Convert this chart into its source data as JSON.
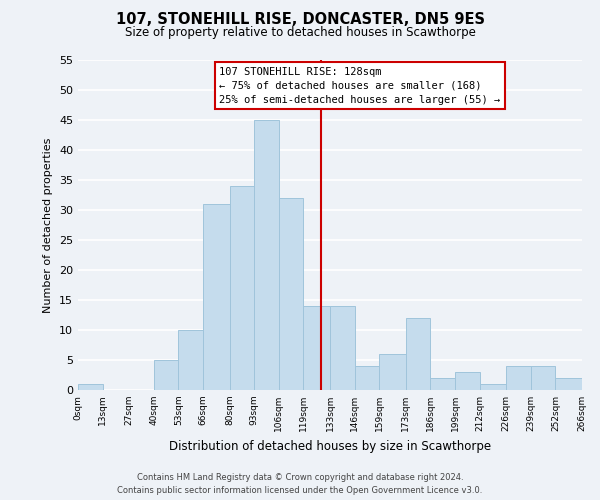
{
  "title": "107, STONEHILL RISE, DONCASTER, DN5 9ES",
  "subtitle": "Size of property relative to detached houses in Scawthorpe",
  "xlabel": "Distribution of detached houses by size in Scawthorpe",
  "ylabel": "Number of detached properties",
  "bar_color": "#c5dced",
  "bar_edge_color": "#a0c4db",
  "bins": [
    0,
    13,
    27,
    40,
    53,
    66,
    80,
    93,
    106,
    119,
    133,
    146,
    159,
    173,
    186,
    199,
    212,
    226,
    239,
    252,
    266
  ],
  "bin_labels": [
    "0sqm",
    "13sqm",
    "27sqm",
    "40sqm",
    "53sqm",
    "66sqm",
    "80sqm",
    "93sqm",
    "106sqm",
    "119sqm",
    "133sqm",
    "146sqm",
    "159sqm",
    "173sqm",
    "186sqm",
    "199sqm",
    "212sqm",
    "226sqm",
    "239sqm",
    "252sqm",
    "266sqm"
  ],
  "counts": [
    1,
    0,
    0,
    5,
    10,
    31,
    34,
    45,
    32,
    14,
    14,
    4,
    6,
    12,
    2,
    3,
    1,
    4,
    4,
    2
  ],
  "vline_x": 128,
  "vline_color": "#cc0000",
  "ylim": [
    0,
    55
  ],
  "yticks": [
    0,
    5,
    10,
    15,
    20,
    25,
    30,
    35,
    40,
    45,
    50,
    55
  ],
  "annotation_title": "107 STONEHILL RISE: 128sqm",
  "annotation_line1": "← 75% of detached houses are smaller (168)",
  "annotation_line2": "25% of semi-detached houses are larger (55) →",
  "footer1": "Contains HM Land Registry data © Crown copyright and database right 2024.",
  "footer2": "Contains public sector information licensed under the Open Government Licence v3.0.",
  "background_color": "#eef2f7",
  "grid_color": "#ffffff"
}
